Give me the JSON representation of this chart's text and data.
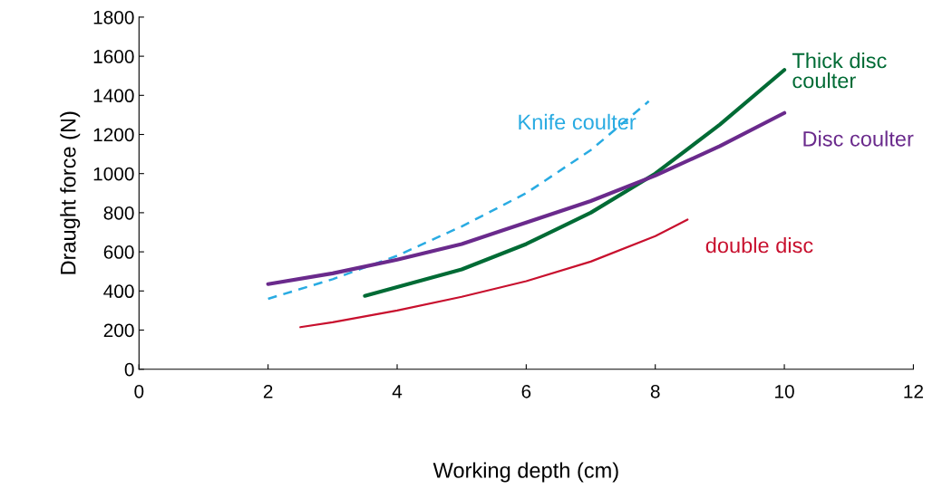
{
  "chart_data": {
    "type": "line",
    "xlabel": "Working depth (cm)",
    "ylabel": "Draught force (N)",
    "xlim": [
      0,
      12
    ],
    "xticks": [
      0,
      2,
      4,
      6,
      8,
      10,
      12
    ],
    "ylim": [
      0,
      1800
    ],
    "yticks": [
      0,
      200,
      400,
      600,
      800,
      1000,
      1200,
      1400,
      1600,
      1800
    ],
    "grid": false,
    "legend": false,
    "marker": "none",
    "series": [
      {
        "name": "Knife coulter",
        "color": "#29abe2",
        "line_style": "dashed",
        "x": [
          2,
          3,
          4,
          5,
          6,
          7,
          7.9
        ],
        "values": [
          360,
          460,
          580,
          730,
          900,
          1120,
          1370
        ]
      },
      {
        "name": "Thick disc\ncoulter",
        "color": "#006b35",
        "line_style": "solid",
        "x": [
          3.5,
          4,
          5,
          6,
          7,
          8,
          9,
          10
        ],
        "values": [
          375,
          420,
          510,
          640,
          800,
          1000,
          1250,
          1530
        ]
      },
      {
        "name": "Disc coulter",
        "color": "#6a2a8c",
        "line_style": "solid",
        "x": [
          2,
          3,
          4,
          5,
          6,
          7,
          8,
          9,
          10
        ],
        "values": [
          435,
          490,
          560,
          640,
          750,
          860,
          990,
          1140,
          1310
        ]
      },
      {
        "name": "double disc",
        "color": "#c8102e",
        "line_style": "solid",
        "x": [
          2.5,
          3,
          4,
          5,
          6,
          7,
          8,
          8.5
        ],
        "values": [
          215,
          240,
          300,
          370,
          450,
          550,
          680,
          765
        ]
      }
    ]
  }
}
